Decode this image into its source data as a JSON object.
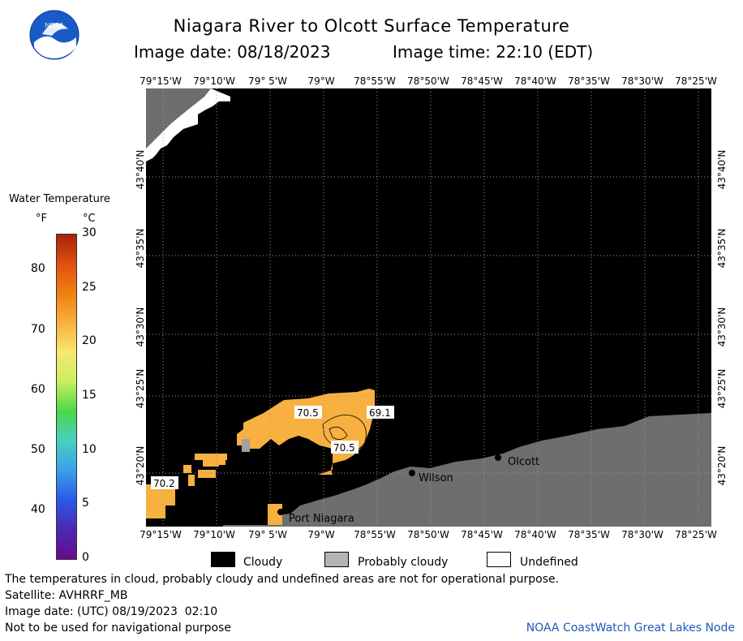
{
  "header": {
    "title": "Niagara River to Olcott Surface Temperature",
    "image_date_label": "Image date: 08/18/2023",
    "image_time_label": "Image time: 22:10 (EDT)"
  },
  "logo": {
    "text": "NOAA"
  },
  "colorbar": {
    "title": "Water Temperature",
    "unit_f": "°F",
    "unit_c": "°C",
    "f_ticks": [
      "80",
      "70",
      "60",
      "50",
      "40"
    ],
    "c_ticks": [
      "30",
      "25",
      "20",
      "15",
      "10",
      "5",
      "0"
    ],
    "colors": [
      "#6a0a8c",
      "#4a2ab0",
      "#2a58e8",
      "#3aa0e8",
      "#48d0c0",
      "#4ad84a",
      "#c8ee60",
      "#f8e870",
      "#f8b040",
      "#f08010",
      "#e05010",
      "#a82008"
    ]
  },
  "map": {
    "lon_labels_top": [
      "79°15'W",
      "79°10'W",
      "79° 5'W",
      "79°W",
      "78°55'W",
      "78°50'W",
      "78°45'W",
      "78°40'W",
      "78°35'W",
      "78°30'W",
      "78°25'W"
    ],
    "lon_labels_bottom": [
      "79°15'W",
      "79°10'W",
      "79° 5'W",
      "79°W",
      "78°55'W",
      "78°50'W",
      "78°45'W",
      "78°40'W",
      "78°35'W",
      "78°30'W",
      "78°25'W"
    ],
    "lat_labels": [
      "43°40'N",
      "43°35'N",
      "43°30'N",
      "43°25'N",
      "43°20'N"
    ],
    "temp_labels": [
      "70.5",
      "69.1",
      "70.5",
      "70.2"
    ],
    "places": [
      "Wilson",
      "Olcott",
      "Port Niagara"
    ],
    "colors": {
      "cloud": "#000000",
      "land": "#6e6e6e",
      "water_warm": "#f8b040",
      "grid": "#9a9a9a"
    }
  },
  "legend": {
    "cloudy": "Cloudy",
    "probably_cloudy": "Probably cloudy",
    "undefined": "Undefined"
  },
  "footer": {
    "disclaimer": "The temperatures in cloud, probably cloudy and undefined areas are not for operational purpose.",
    "satellite": "Satellite: AVHRRF_MB",
    "utc_date": "Image date: (UTC) 08/19/2023  02:10",
    "nav_warning": "Not to be used for navigational purpose",
    "credit": "NOAA CoastWatch Great Lakes Node"
  }
}
